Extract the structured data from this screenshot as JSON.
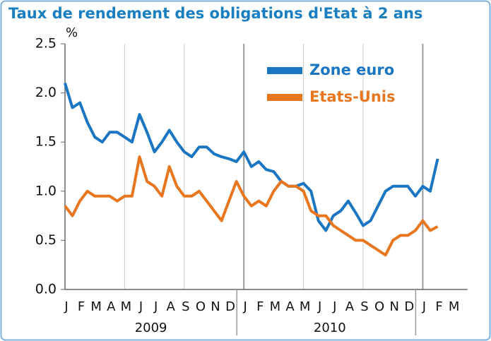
{
  "chart_data": {
    "type": "line",
    "title": "Taux de rendement des obligations d'Etat à 2 ans",
    "y_unit": "%",
    "month_labels": [
      "J",
      "F",
      "M",
      "A",
      "M",
      "J",
      "J",
      "A",
      "S",
      "O",
      "N",
      "D",
      "J",
      "F",
      "M",
      "A",
      "M",
      "J",
      "J",
      "A",
      "S",
      "O",
      "N",
      "D",
      "J",
      "F",
      "M"
    ],
    "year_labels": [
      "2009",
      "2010"
    ],
    "ylim": [
      0,
      2.5
    ],
    "yticks": [
      {
        "value": 0,
        "label": "0.0"
      },
      0.5,
      {
        "value": 1,
        "label": "1.0"
      },
      1.5,
      {
        "value": 2,
        "label": "2.0"
      },
      2.5
    ],
    "legend": "top-right",
    "series": [
      {
        "name": "Zone euro",
        "color": "#1a75c2",
        "values": [
          2.1,
          1.85,
          1.9,
          1.7,
          1.55,
          1.5,
          1.6,
          1.6,
          1.55,
          1.5,
          1.78,
          1.6,
          1.4,
          1.5,
          1.62,
          1.5,
          1.4,
          1.35,
          1.45,
          1.45,
          1.38,
          1.35,
          1.33,
          1.3,
          1.4,
          1.25,
          1.3,
          1.22,
          1.2,
          1.1,
          1.05,
          1.05,
          1.08,
          1.0,
          0.7,
          0.6,
          0.75,
          0.8,
          0.9,
          0.78,
          0.65,
          0.7,
          0.85,
          1.0,
          1.05,
          1.05,
          1.05,
          0.95,
          1.05,
          1.0,
          1.33
        ]
      },
      {
        "name": "Etats-Unis",
        "color": "#e8761e",
        "values": [
          0.85,
          0.75,
          0.9,
          1.0,
          0.95,
          0.95,
          0.95,
          0.9,
          0.95,
          0.95,
          1.35,
          1.1,
          1.05,
          0.95,
          1.25,
          1.05,
          0.95,
          0.95,
          1.0,
          0.9,
          0.8,
          0.7,
          0.9,
          1.1,
          0.95,
          0.85,
          0.9,
          0.85,
          1.0,
          1.1,
          1.05,
          1.05,
          1.0,
          0.8,
          0.75,
          0.75,
          0.65,
          0.6,
          0.55,
          0.5,
          0.5,
          0.45,
          0.4,
          0.35,
          0.5,
          0.55,
          0.55,
          0.6,
          0.7,
          0.6,
          0.64
        ]
      }
    ]
  }
}
